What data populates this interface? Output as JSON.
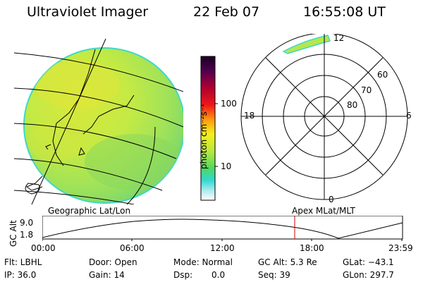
{
  "header": {
    "instrument": "Ultraviolet Imager",
    "date": "22 Feb 07",
    "time": "16:55:08 UT"
  },
  "colorbar": {
    "unit_label": "photon cm⁻²s⁻¹",
    "ticks": [
      "100",
      "10"
    ],
    "scale": "log"
  },
  "panels": {
    "left_label": "Geographic Lat/Lon",
    "right_label": "Apex MLat/MLT"
  },
  "polar_plot": {
    "lat_labels": [
      "60",
      "70",
      "80"
    ],
    "mlt_labels": {
      "top": "12",
      "bottom": "0",
      "left": "18",
      "right": "6"
    }
  },
  "altitude_plot": {
    "ylabel": "GC Alt",
    "yticks": [
      "9.0",
      "1.8"
    ],
    "xticks": [
      "00:00",
      "06:00",
      "12:00",
      "18:00",
      "23:59"
    ],
    "marker_time": "16:55"
  },
  "info": {
    "flt": "Flt: LBHL",
    "ip": "IP: 36.0",
    "door": "Door: Open",
    "gain": "Gain: 14",
    "mode": "Mode: Normal",
    "dsp_label": "Dsp:",
    "dsp_value": "0.0",
    "gc_alt": "GC Alt: 5.3 Re",
    "seq": "Seq: 39",
    "glat": "GLat: −43.1",
    "glon": "GLon: 297.7"
  },
  "colors": {
    "image_green": "#b8e84a",
    "image_yellow": "#dce83a",
    "image_teal": "#40d8c8",
    "marker_red": "#cc0000"
  }
}
